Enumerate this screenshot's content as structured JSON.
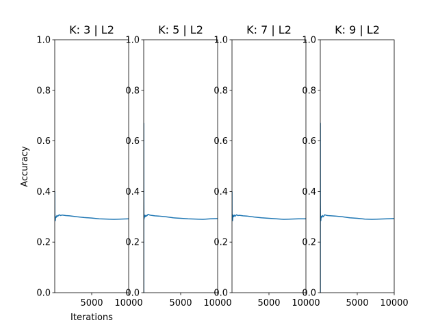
{
  "figure": {
    "ylabel": "Accuracy",
    "xlabel": "Iterations"
  },
  "chart_data": [
    {
      "type": "line",
      "title": "K: 3 | L2",
      "xlim": [
        0,
        10000
      ],
      "ylim": [
        0.0,
        1.0
      ],
      "xticks": [
        5000,
        10000
      ],
      "yticks": [
        0.0,
        0.2,
        0.4,
        0.6,
        0.8,
        1.0
      ],
      "color": "#1f77b4",
      "x": [
        1,
        3,
        5,
        10,
        20,
        35,
        50,
        75,
        100,
        150,
        200,
        300,
        400,
        600,
        800,
        1000,
        1500,
        2000,
        3000,
        4000,
        5000,
        6000,
        7000,
        8000,
        9000,
        10000
      ],
      "y": [
        0.4,
        0.36,
        0.33,
        0.3,
        0.31,
        0.29,
        0.3,
        0.285,
        0.295,
        0.3,
        0.298,
        0.305,
        0.302,
        0.308,
        0.305,
        0.307,
        0.305,
        0.304,
        0.3,
        0.297,
        0.295,
        0.292,
        0.291,
        0.29,
        0.291,
        0.292
      ]
    },
    {
      "type": "line",
      "title": "K: 5 | L2",
      "xlim": [
        0,
        10000
      ],
      "ylim": [
        0.0,
        1.0
      ],
      "xticks": [
        5000,
        10000
      ],
      "yticks": [
        0.0,
        0.2,
        0.4,
        0.6,
        0.8,
        1.0
      ],
      "color": "#1f77b4",
      "x": [
        1,
        3,
        5,
        10,
        20,
        35,
        50,
        75,
        100,
        150,
        200,
        300,
        400,
        600,
        800,
        1000,
        1500,
        2000,
        3000,
        4000,
        5000,
        6000,
        7000,
        8000,
        9000,
        10000
      ],
      "y": [
        0.0,
        0.67,
        0.5,
        0.38,
        0.33,
        0.29,
        0.31,
        0.295,
        0.3,
        0.305,
        0.3,
        0.306,
        0.303,
        0.31,
        0.307,
        0.306,
        0.304,
        0.303,
        0.3,
        0.296,
        0.294,
        0.292,
        0.291,
        0.29,
        0.292,
        0.293
      ]
    },
    {
      "type": "line",
      "title": "K: 7 | L2",
      "xlim": [
        0,
        10000
      ],
      "ylim": [
        0.0,
        1.0
      ],
      "xticks": [
        5000,
        10000
      ],
      "yticks": [
        0.0,
        0.2,
        0.4,
        0.6,
        0.8,
        1.0
      ],
      "color": "#1f77b4",
      "x": [
        1,
        3,
        5,
        10,
        20,
        35,
        50,
        75,
        100,
        150,
        200,
        300,
        400,
        600,
        800,
        1000,
        1500,
        2000,
        3000,
        4000,
        5000,
        6000,
        7000,
        8000,
        9000,
        10000
      ],
      "y": [
        0.4,
        0.35,
        0.32,
        0.3,
        0.29,
        0.31,
        0.295,
        0.285,
        0.3,
        0.305,
        0.3,
        0.307,
        0.302,
        0.308,
        0.305,
        0.306,
        0.304,
        0.303,
        0.299,
        0.296,
        0.294,
        0.292,
        0.29,
        0.291,
        0.292,
        0.292
      ]
    },
    {
      "type": "line",
      "title": "K: 9 | L2",
      "xlim": [
        0,
        10000
      ],
      "ylim": [
        0.0,
        1.0
      ],
      "xticks": [
        5000,
        10000
      ],
      "yticks": [
        0.0,
        0.2,
        0.4,
        0.6,
        0.8,
        1.0
      ],
      "color": "#1f77b4",
      "x": [
        1,
        3,
        5,
        10,
        20,
        35,
        50,
        75,
        100,
        150,
        200,
        300,
        400,
        600,
        800,
        1000,
        1500,
        2000,
        3000,
        4000,
        5000,
        6000,
        7000,
        8000,
        9000,
        10000
      ],
      "y": [
        0.0,
        0.67,
        0.45,
        0.35,
        0.31,
        0.29,
        0.3,
        0.285,
        0.295,
        0.302,
        0.298,
        0.305,
        0.3,
        0.308,
        0.306,
        0.305,
        0.304,
        0.303,
        0.3,
        0.296,
        0.294,
        0.291,
        0.29,
        0.291,
        0.292,
        0.293
      ]
    }
  ]
}
